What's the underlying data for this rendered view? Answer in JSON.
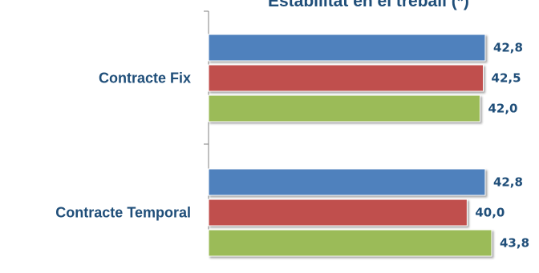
{
  "chart_data": {
    "type": "bar",
    "orientation": "horizontal",
    "title": "Estabilitat en el treball (*)",
    "categories": [
      "Contracte Fix",
      "Contracte Temporal"
    ],
    "series": [
      {
        "values": [
          42.8,
          42.8
        ],
        "color": "#4f81bd"
      },
      {
        "values": [
          42.5,
          40.0
        ],
        "color": "#c0504d"
      },
      {
        "values": [
          42.0,
          43.8
        ],
        "color": "#9bbb59"
      }
    ],
    "data_labels": [
      [
        "42,8",
        "42,8"
      ],
      [
        "42,5",
        "40,0"
      ],
      [
        "42,0",
        "43,8"
      ]
    ],
    "xlim": [
      0,
      43.8
    ],
    "grid": false,
    "legend": "none"
  }
}
